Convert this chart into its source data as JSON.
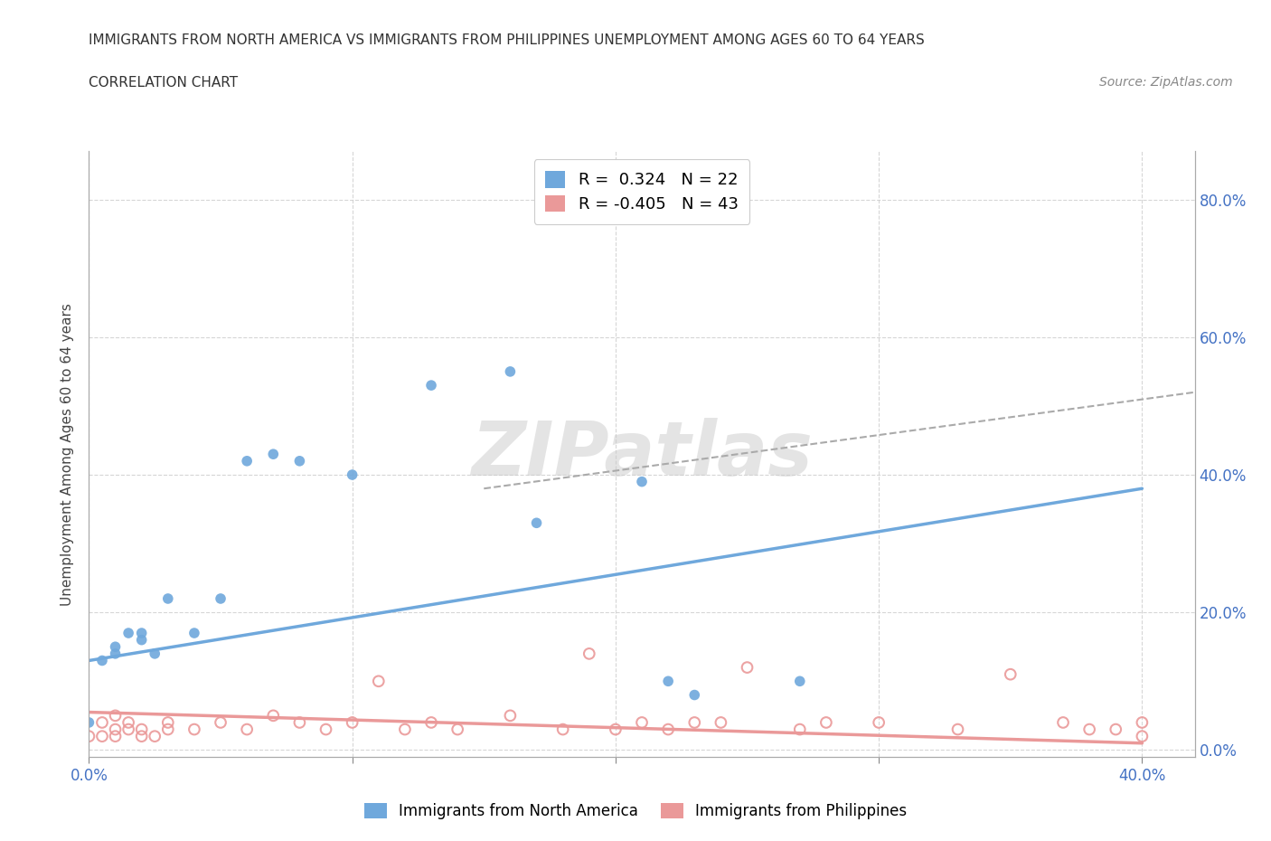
{
  "title_line1": "IMMIGRANTS FROM NORTH AMERICA VS IMMIGRANTS FROM PHILIPPINES UNEMPLOYMENT AMONG AGES 60 TO 64 YEARS",
  "title_line2": "CORRELATION CHART",
  "source_text": "Source: ZipAtlas.com",
  "ylabel": "Unemployment Among Ages 60 to 64 years",
  "xlim": [
    0.0,
    0.42
  ],
  "ylim": [
    -0.01,
    0.87
  ],
  "y_tick_positions": [
    0.0,
    0.2,
    0.4,
    0.6,
    0.8
  ],
  "y_tick_labels_right": [
    "0.0%",
    "20.0%",
    "40.0%",
    "60.0%",
    "80.0%"
  ],
  "x_tick_positions": [
    0.0,
    0.1,
    0.2,
    0.3,
    0.4
  ],
  "x_tick_labels": [
    "0.0%",
    "",
    "",
    "",
    "40.0%"
  ],
  "na_color": "#6fa8dc",
  "ph_color": "#ea9999",
  "na_R": "0.324",
  "na_N": "22",
  "ph_R": "-0.405",
  "ph_N": "43",
  "na_scatter_x": [
    0.0,
    0.005,
    0.01,
    0.01,
    0.015,
    0.02,
    0.02,
    0.025,
    0.03,
    0.04,
    0.05,
    0.06,
    0.07,
    0.08,
    0.1,
    0.13,
    0.16,
    0.17,
    0.21,
    0.22,
    0.23,
    0.27
  ],
  "na_scatter_y": [
    0.04,
    0.13,
    0.14,
    0.15,
    0.17,
    0.16,
    0.17,
    0.14,
    0.22,
    0.17,
    0.22,
    0.42,
    0.43,
    0.42,
    0.4,
    0.53,
    0.55,
    0.33,
    0.39,
    0.1,
    0.08,
    0.1
  ],
  "ph_scatter_x": [
    0.0,
    0.005,
    0.005,
    0.01,
    0.01,
    0.01,
    0.015,
    0.015,
    0.02,
    0.02,
    0.025,
    0.03,
    0.03,
    0.04,
    0.05,
    0.06,
    0.07,
    0.08,
    0.09,
    0.1,
    0.11,
    0.12,
    0.13,
    0.14,
    0.16,
    0.18,
    0.19,
    0.2,
    0.21,
    0.22,
    0.23,
    0.24,
    0.25,
    0.27,
    0.28,
    0.3,
    0.33,
    0.35,
    0.37,
    0.38,
    0.39,
    0.4,
    0.4
  ],
  "ph_scatter_y": [
    0.02,
    0.02,
    0.04,
    0.02,
    0.03,
    0.05,
    0.03,
    0.04,
    0.02,
    0.03,
    0.02,
    0.03,
    0.04,
    0.03,
    0.04,
    0.03,
    0.05,
    0.04,
    0.03,
    0.04,
    0.1,
    0.03,
    0.04,
    0.03,
    0.05,
    0.03,
    0.14,
    0.03,
    0.04,
    0.03,
    0.04,
    0.04,
    0.12,
    0.03,
    0.04,
    0.04,
    0.03,
    0.11,
    0.04,
    0.03,
    0.03,
    0.04,
    0.02
  ],
  "na_trend_x": [
    0.0,
    0.4
  ],
  "na_trend_y": [
    0.13,
    0.38
  ],
  "ph_trend_x": [
    0.0,
    0.4
  ],
  "ph_trend_y": [
    0.055,
    0.01
  ],
  "dash_trend_x": [
    0.15,
    0.42
  ],
  "dash_trend_y": [
    0.38,
    0.52
  ],
  "background_color": "#ffffff",
  "grid_color": "#cccccc",
  "watermark": "ZIPatlas",
  "na_legend_label": "Immigrants from North America",
  "ph_legend_label": "Immigrants from Philippines"
}
